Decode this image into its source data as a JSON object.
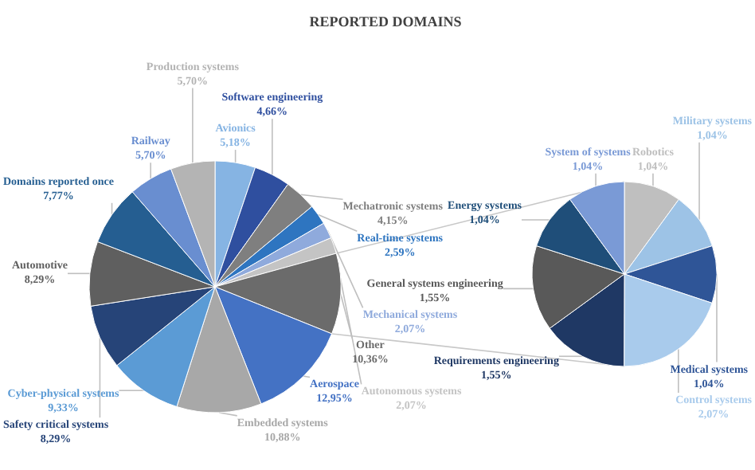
{
  "chart_data": [
    {
      "type": "pie",
      "title": "REPORTED DOMAINS",
      "categories": [
        "Avionics",
        "Software engineering",
        "Mechatronic systems",
        "Real-time systems",
        "Mechanical systems",
        "Autonomous systems",
        "Other",
        "Aerospace",
        "Embedded systems",
        "Cyber-physical systems",
        "Safety critical systems",
        "Automotive",
        "Domains reported once",
        "Railway",
        "Production systems"
      ],
      "values": [
        5.18,
        4.66,
        4.15,
        2.59,
        2.07,
        2.07,
        10.36,
        12.95,
        10.88,
        9.33,
        8.29,
        8.29,
        7.77,
        5.7,
        5.7
      ],
      "value_labels": [
        "5,18%",
        "4,66%",
        "4,15%",
        "2,59%",
        "2,07%",
        "2,07%",
        "10,36%",
        "12,95%",
        "10,88%",
        "9,33%",
        "8,29%",
        "8,29%",
        "7,77%",
        "5,70%",
        "5,70%"
      ],
      "colors": [
        "#86b4e3",
        "#2f4f9f",
        "#7f7f7f",
        "#2e75c0",
        "#8faadc",
        "#c4c4c4",
        "#6b6b6b",
        "#4472c4",
        "#a8a8a8",
        "#5b9bd5",
        "#264478",
        "#5f5f5f",
        "#255e91",
        "#698ed0",
        "#b4b4b4"
      ]
    },
    {
      "type": "pie",
      "categories": [
        "Robotics",
        "Military systems",
        "Medical systems",
        "Control systems",
        "Requirements engineering",
        "General systems engineering",
        "Energy systems",
        "System of systems"
      ],
      "values": [
        1.04,
        1.04,
        1.04,
        2.07,
        1.55,
        1.55,
        1.04,
        1.04
      ],
      "value_labels": [
        "1,04%",
        "1,04%",
        "1,04%",
        "2,07%",
        "1,55%",
        "1,55%",
        "1,04%",
        "1,04%"
      ],
      "colors": [
        "#bfbfbf",
        "#9dc3e6",
        "#2f5597",
        "#a9cbec",
        "#1f3864",
        "#595959",
        "#1f4e79",
        "#7a9ad6"
      ]
    }
  ]
}
